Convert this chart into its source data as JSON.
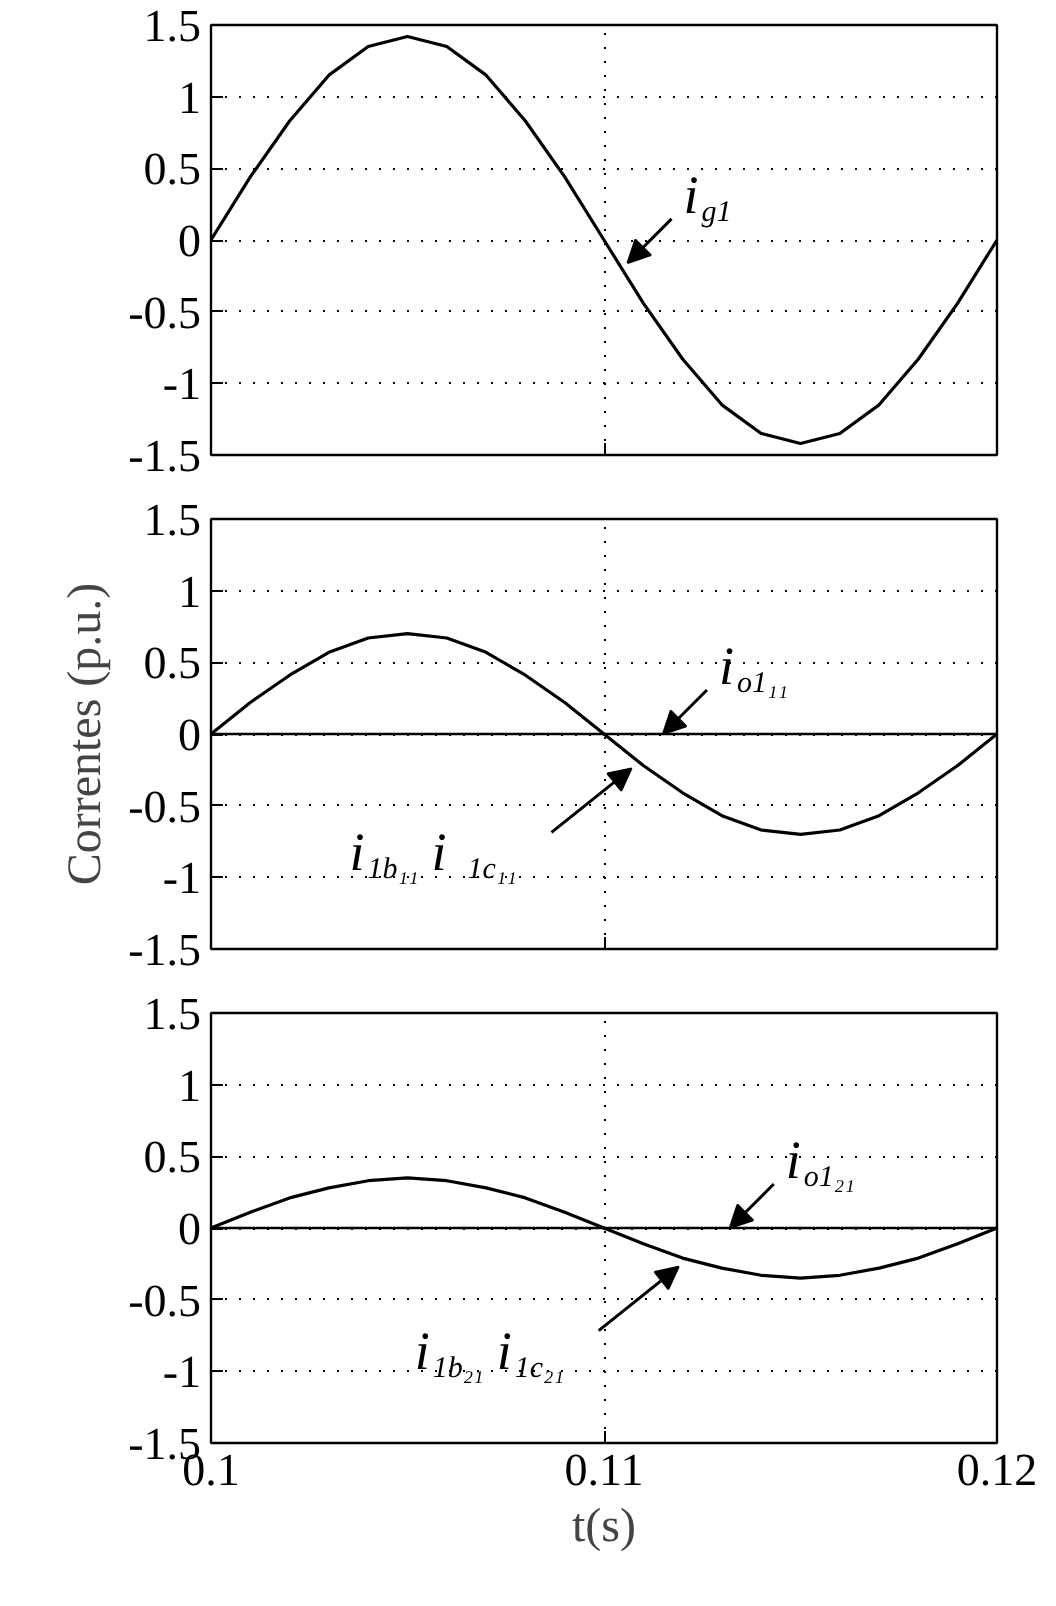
{
  "chart_data": [
    {
      "type": "line",
      "x": [
        0.1,
        0.101,
        0.102,
        0.103,
        0.104,
        0.105,
        0.106,
        0.107,
        0.108,
        0.109,
        0.11,
        0.111,
        0.112,
        0.113,
        0.114,
        0.115,
        0.116,
        0.117,
        0.118,
        0.119,
        0.12
      ],
      "series": [
        {
          "color": "#000000",
          "values": [
            0,
            0.44,
            0.83,
            1.15,
            1.35,
            1.42,
            1.35,
            1.15,
            0.83,
            0.44,
            0,
            -0.44,
            -0.83,
            -1.15,
            -1.35,
            -1.42,
            -1.35,
            -1.15,
            -0.83,
            -0.44,
            0
          ]
        }
      ],
      "xlim": [
        0.1,
        0.12
      ],
      "ylim": [
        -1.5,
        1.5
      ],
      "xticks": [
        0.1,
        0.11,
        0.12
      ],
      "yticks": [
        -1.5,
        -1,
        -0.5,
        0,
        0.5,
        1,
        1.5
      ],
      "grid": true,
      "tick_labels": "y",
      "annotations": [
        {
          "text": "i$_{g1}$",
          "x": 0.1106,
          "y": -0.16
        }
      ]
    },
    {
      "type": "line",
      "x": [
        0.1,
        0.101,
        0.102,
        0.103,
        0.104,
        0.105,
        0.106,
        0.107,
        0.108,
        0.109,
        0.11,
        0.111,
        0.112,
        0.113,
        0.114,
        0.115,
        0.116,
        0.117,
        0.118,
        0.119,
        0.12
      ],
      "series": [
        {
          "color": "#000000",
          "values": [
            0,
            0.22,
            0.41,
            0.57,
            0.67,
            0.7,
            0.67,
            0.57,
            0.41,
            0.22,
            0,
            -0.22,
            -0.41,
            -0.57,
            -0.67,
            -0.7,
            -0.67,
            -0.57,
            -0.41,
            -0.22,
            0
          ]
        }
      ],
      "xlim": [
        0.1,
        0.12
      ],
      "ylim": [
        -1.5,
        1.5
      ],
      "xticks": [
        0.1,
        0.11,
        0.12
      ],
      "yticks": [
        -1.5,
        -1,
        -0.5,
        0,
        0.5,
        1,
        1.5
      ],
      "grid": true,
      "tick_labels": "y",
      "ylabel": "Correntes (p.u.)",
      "ref_lines": [
        {
          "axis": "y",
          "value": 0,
          "color": "#000000"
        }
      ],
      "annotations": [
        {
          "text": "i$_{o1₁₁}$",
          "x": 0.1115,
          "y": 0
        },
        {
          "text": "i$_{1b₁₁}$ i$_{1c₁₁}$",
          "x": 0.1107,
          "y": -0.24
        }
      ]
    },
    {
      "type": "line",
      "x": [
        0.1,
        0.101,
        0.102,
        0.103,
        0.104,
        0.105,
        0.106,
        0.107,
        0.108,
        0.109,
        0.11,
        0.111,
        0.112,
        0.113,
        0.114,
        0.115,
        0.116,
        0.117,
        0.118,
        0.119,
        0.12
      ],
      "series": [
        {
          "color": "#000000",
          "values": [
            0,
            0.11,
            0.21,
            0.28,
            0.33,
            0.35,
            0.33,
            0.28,
            0.21,
            0.11,
            0,
            -0.11,
            -0.21,
            -0.28,
            -0.33,
            -0.35,
            -0.33,
            -0.28,
            -0.21,
            -0.11,
            0
          ]
        }
      ],
      "xlim": [
        0.1,
        0.12
      ],
      "ylim": [
        -1.5,
        1.5
      ],
      "xticks": [
        0.1,
        0.11,
        0.12
      ],
      "yticks": [
        -1.5,
        -1,
        -0.5,
        0,
        0.5,
        1,
        1.5
      ],
      "grid": true,
      "xlabel": "t(s)",
      "ref_lines": [
        {
          "axis": "y",
          "value": 0,
          "color": "#000000"
        }
      ],
      "annotations": [
        {
          "text": "i$_{o1₂₁}$",
          "x": 0.1132,
          "y": 0
        },
        {
          "text": "i$_{1b₂₁}$i$_{1c₂₁}$",
          "x": 0.1119,
          "y": -0.27
        }
      ]
    }
  ]
}
